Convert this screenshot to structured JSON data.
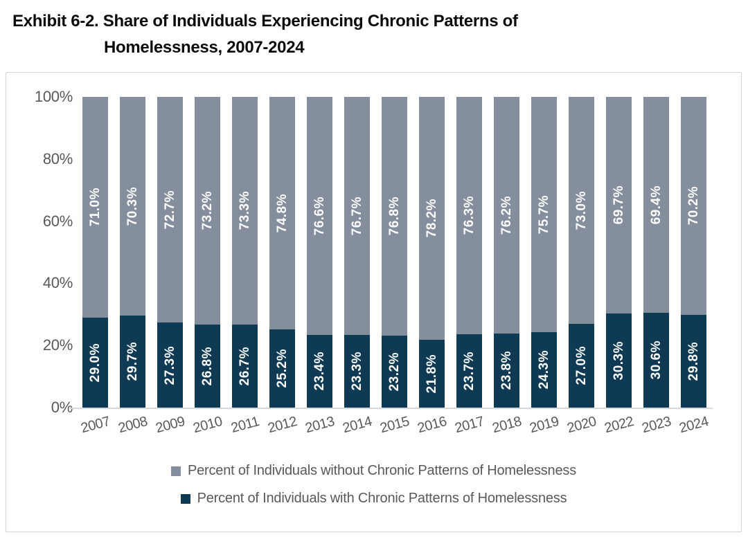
{
  "title": {
    "line1": "Exhibit 6-2. Share of Individuals Experiencing Chronic Patterns of",
    "line2": "Homelessness, 2007-2024"
  },
  "colors": {
    "with_chronic": "#0F3A53",
    "without_chronic": "#848E9C",
    "axis_text": "#595959",
    "value_label_text": "#FFFFFF",
    "frame_border": "#D4D4D4",
    "axis_line": "#D9D9D9"
  },
  "chart_data": {
    "type": "bar",
    "stacked": true,
    "title": "Exhibit 6-2. Share of Individuals Experiencing Chronic Patterns of Homelessness, 2007-2024",
    "xlabel": "",
    "ylabel": "",
    "ylim": [
      0,
      100
    ],
    "y_ticks": [
      "100%",
      "80%",
      "60%",
      "40%",
      "20%",
      "0%"
    ],
    "x_tick_rotation": -15,
    "grid": false,
    "legend_position": "bottom",
    "categories": [
      "2007",
      "2008",
      "2009",
      "2010",
      "2011",
      "2012",
      "2013",
      "2014",
      "2015",
      "2016",
      "2017",
      "2018",
      "2019",
      "2020",
      "2022",
      "2023",
      "2024"
    ],
    "series": [
      {
        "id": "without",
        "name": "Percent of Individuals without Chronic Patterns of Homelessness",
        "color": "#848E9C",
        "values": [
          71.0,
          70.3,
          72.7,
          73.2,
          73.3,
          74.8,
          76.6,
          76.7,
          76.8,
          78.2,
          76.3,
          76.2,
          75.7,
          73.0,
          69.7,
          69.4,
          70.2
        ],
        "labels": [
          "71.0%",
          "70.3%",
          "72.7%",
          "73.2%",
          "73.3%",
          "74.8%",
          "76.6%",
          "76.7%",
          "76.8%",
          "78.2%",
          "76.3%",
          "76.2%",
          "75.7%",
          "73.0%",
          "69.7%",
          "69.4%",
          "70.2%"
        ]
      },
      {
        "id": "with",
        "name": "Percent of Individuals with Chronic Patterns of Homelessness",
        "color": "#0F3A53",
        "values": [
          29.0,
          29.7,
          27.3,
          26.8,
          26.7,
          25.2,
          23.4,
          23.3,
          23.2,
          21.8,
          23.7,
          23.8,
          24.3,
          27.0,
          30.3,
          30.6,
          29.8
        ],
        "labels": [
          "29.0%",
          "29.7%",
          "27.3%",
          "26.8%",
          "26.7%",
          "25.2%",
          "23.4%",
          "23.3%",
          "23.2%",
          "21.8%",
          "23.7%",
          "23.8%",
          "24.3%",
          "27.0%",
          "30.3%",
          "30.6%",
          "29.8%"
        ]
      }
    ]
  }
}
